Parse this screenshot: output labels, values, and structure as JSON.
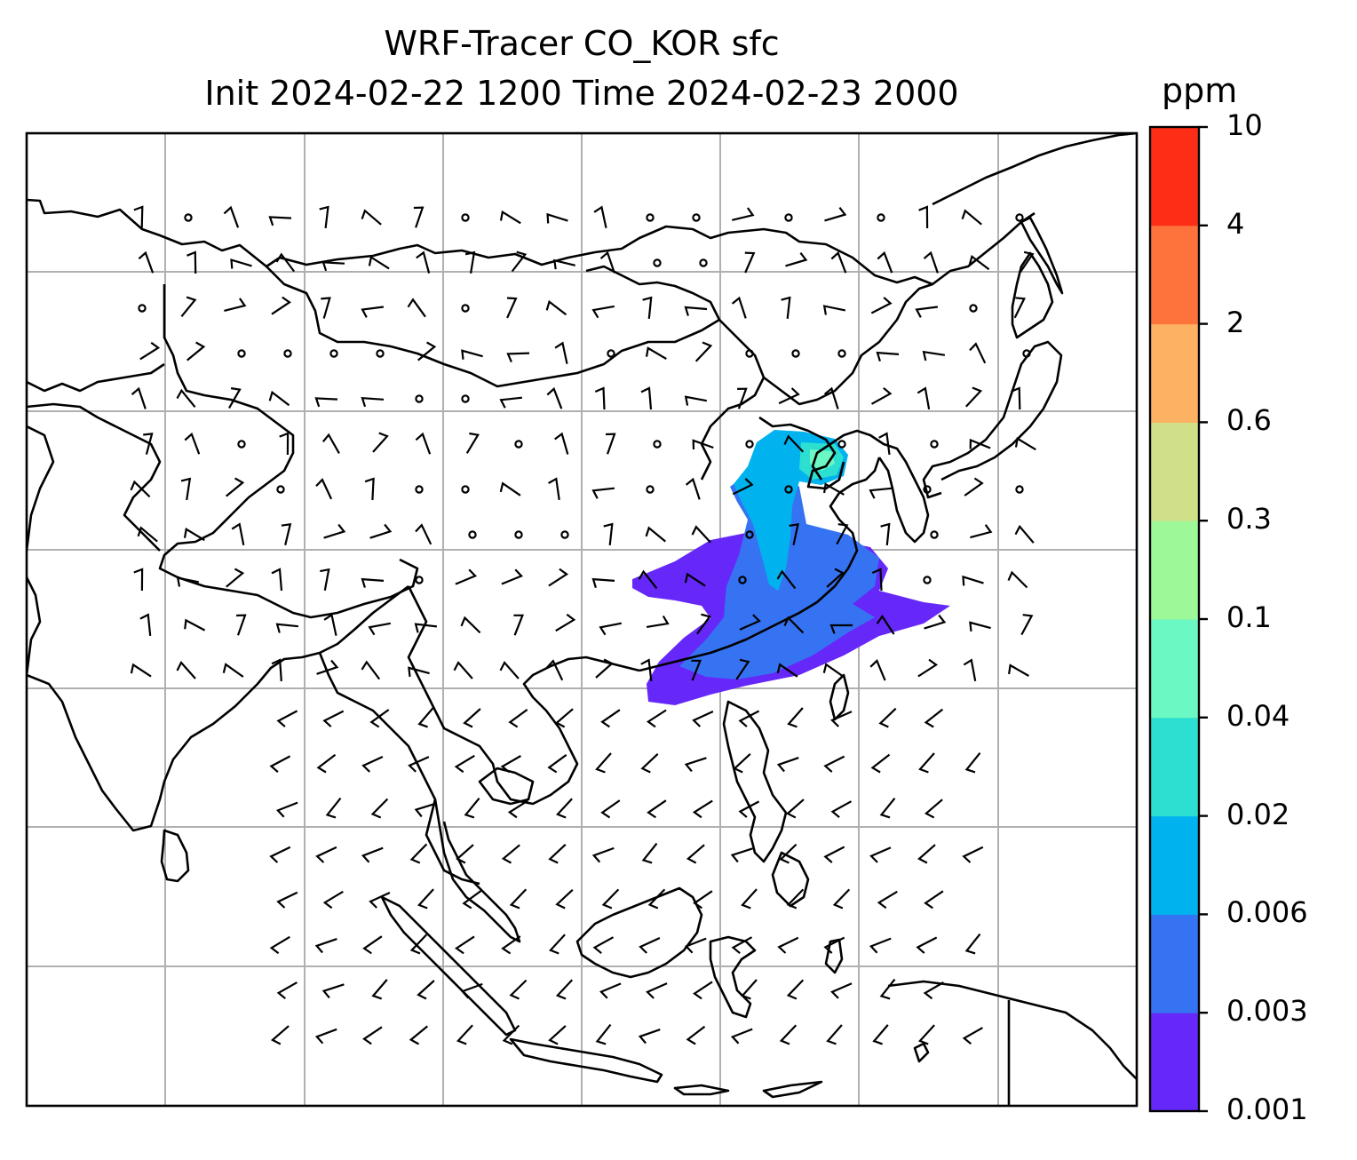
{
  "title_line1": "WRF-Tracer CO_KOR sfc",
  "title_line2": "Init 2024-02-22 1200 Time 2024-02-23 2000",
  "colorbar": {
    "unit": "ppm",
    "levels": [
      "0.001",
      "0.003",
      "0.006",
      "0.02",
      "0.04",
      "0.1",
      "0.3",
      "0.6",
      "2",
      "4",
      "10"
    ],
    "colors": [
      "#6628f8",
      "#3573f2",
      "#00b3ee",
      "#2ddfd1",
      "#6cf8c2",
      "#9df898",
      "#cfe088",
      "#fdb263",
      "#fd733b",
      "#fe2e16"
    ]
  },
  "map": {
    "gridlines": true,
    "features": [
      "coastlines",
      "country-borders",
      "wind-barbs",
      "tracer-plume"
    ]
  }
}
